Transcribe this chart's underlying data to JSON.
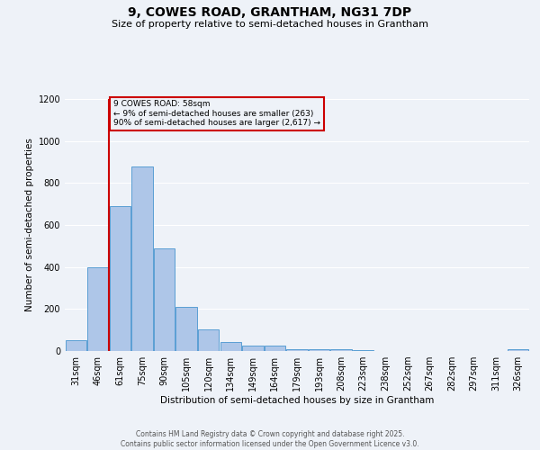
{
  "title": "9, COWES ROAD, GRANTHAM, NG31 7DP",
  "subtitle": "Size of property relative to semi-detached houses in Grantham",
  "xlabel": "Distribution of semi-detached houses by size in Grantham",
  "ylabel": "Number of semi-detached properties",
  "footnote1": "Contains HM Land Registry data © Crown copyright and database right 2025.",
  "footnote2": "Contains public sector information licensed under the Open Government Licence v3.0.",
  "annotation_title": "9 COWES ROAD: 58sqm",
  "annotation_line1": "← 9% of semi-detached houses are smaller (263)",
  "annotation_line2": "90% of semi-detached houses are larger (2,617) →",
  "bar_labels": [
    "31sqm",
    "46sqm",
    "61sqm",
    "75sqm",
    "90sqm",
    "105sqm",
    "120sqm",
    "134sqm",
    "149sqm",
    "164sqm",
    "179sqm",
    "193sqm",
    "208sqm",
    "223sqm",
    "238sqm",
    "252sqm",
    "267sqm",
    "282sqm",
    "297sqm",
    "311sqm",
    "326sqm"
  ],
  "bar_values": [
    50,
    400,
    690,
    880,
    490,
    210,
    105,
    45,
    27,
    27,
    10,
    8,
    8,
    3,
    2,
    2,
    1,
    1,
    0,
    0,
    8
  ],
  "bar_color": "#aec6e8",
  "bar_edge_color": "#5a9fd4",
  "property_line_x": 1.5,
  "ylim": [
    0,
    1200
  ],
  "yticks": [
    0,
    200,
    400,
    600,
    800,
    1000,
    1200
  ],
  "background_color": "#eef2f8",
  "box_color": "#cc0000",
  "grid_color": "#ffffff",
  "title_fontsize": 10,
  "subtitle_fontsize": 8,
  "axis_label_fontsize": 7.5,
  "tick_fontsize": 7,
  "footnote_fontsize": 5.5
}
